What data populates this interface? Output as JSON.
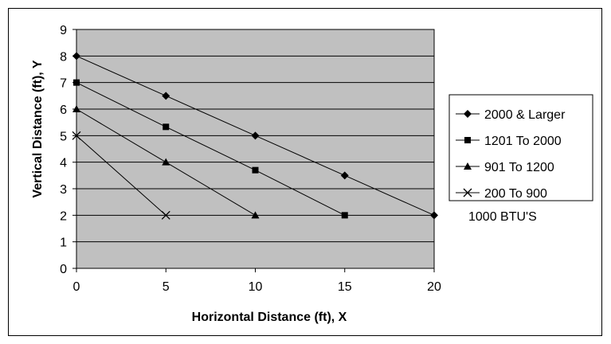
{
  "chart_data": {
    "type": "line",
    "xlabel": "Horizontal Distance (ft), X",
    "ylabel": "Vertical Distance (ft), Y",
    "xlim": [
      0,
      20
    ],
    "ylim": [
      0,
      9
    ],
    "x_ticks": [
      "0",
      "5",
      "10",
      "15",
      "20"
    ],
    "y_ticks": [
      "0",
      "1",
      "2",
      "3",
      "4",
      "5",
      "6",
      "7",
      "8",
      "9"
    ],
    "grid": "horizontal",
    "legend_position": "right",
    "annotation": "1000 BTU'S",
    "series": [
      {
        "name": "2000 & Larger",
        "marker": "diamond",
        "x": [
          0,
          5,
          10,
          15,
          20
        ],
        "y": [
          8,
          6.5,
          5,
          3.5,
          2
        ]
      },
      {
        "name": "1201 To 2000",
        "marker": "square",
        "x": [
          0,
          5,
          10,
          15
        ],
        "y": [
          7,
          5.33,
          3.7,
          2
        ]
      },
      {
        "name": "901 To 1200",
        "marker": "triangle",
        "x": [
          0,
          5,
          10
        ],
        "y": [
          6,
          4,
          2
        ]
      },
      {
        "name": "200 To 900",
        "marker": "x",
        "x": [
          0,
          5
        ],
        "y": [
          5,
          2
        ]
      }
    ],
    "colors": {
      "plot_background": "#c0c0c0",
      "line": "#000000",
      "grid": "#000000"
    }
  }
}
